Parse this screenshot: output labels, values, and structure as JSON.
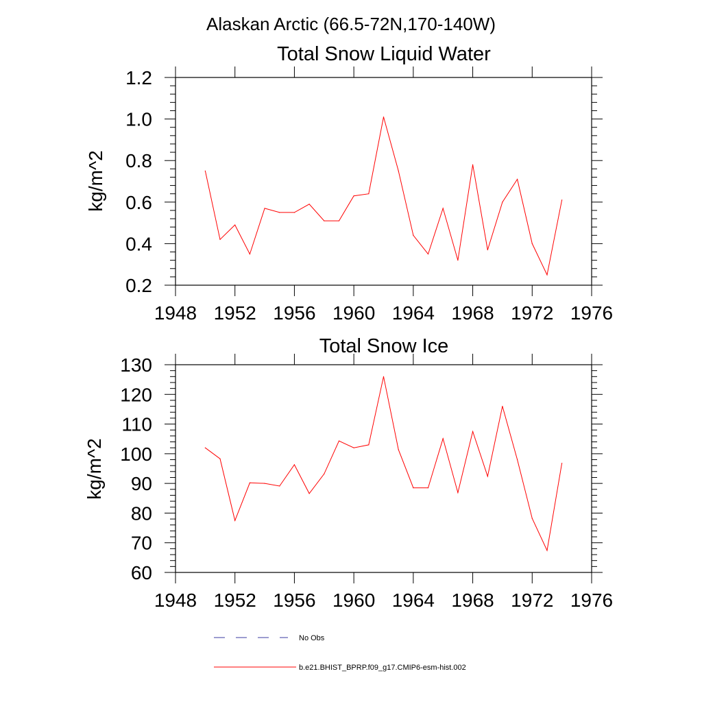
{
  "figure_title": "Alaskan Arctic (66.5-72N,170-140W)",
  "colors": {
    "model": "#ff0000",
    "obs": "#3a3aa0",
    "axes": "#000000"
  },
  "legend": {
    "placement": "bottom-center",
    "entries": [
      {
        "label": "No Obs",
        "style": "dashed",
        "color": "#3a3aa0"
      },
      {
        "label": "b.e21.BHIST_BPRP.f09_g17.CMIP6-esm-hist.002",
        "style": "solid",
        "color": "#ff0000"
      }
    ]
  },
  "chart_data": [
    {
      "type": "line",
      "title": "Total Snow Liquid Water",
      "xlabel": "",
      "ylabel": "kg/m^2",
      "xlim": [
        1948,
        1976
      ],
      "ylim": [
        0.2,
        1.2
      ],
      "x_ticks": [
        "1948",
        "1952",
        "1956",
        "1960",
        "1964",
        "1968",
        "1972",
        "1976"
      ],
      "y_ticks": [
        "0.2",
        "0.4",
        "0.6",
        "0.8",
        "1.0",
        "1.2"
      ],
      "grid": false,
      "series": [
        {
          "name": "b.e21.BHIST_BPRP.f09_g17.CMIP6-esm-hist.002",
          "x": [
            1950,
            1951,
            1952,
            1953,
            1954,
            1955,
            1956,
            1957,
            1958,
            1959,
            1960,
            1961,
            1962,
            1963,
            1964,
            1965,
            1966,
            1967,
            1968,
            1969,
            1970,
            1971,
            1972,
            1973,
            1974
          ],
          "values": [
            0.75,
            0.42,
            0.49,
            0.35,
            0.57,
            0.55,
            0.55,
            0.59,
            0.51,
            0.51,
            0.63,
            0.64,
            1.01,
            0.75,
            0.44,
            0.35,
            0.57,
            0.32,
            0.78,
            0.37,
            0.6,
            0.71,
            0.4,
            0.25,
            0.61
          ]
        }
      ]
    },
    {
      "type": "line",
      "title": "Total Snow Ice",
      "xlabel": "",
      "ylabel": "kg/m^2",
      "xlim": [
        1948,
        1976
      ],
      "ylim": [
        60,
        130
      ],
      "x_ticks": [
        "1948",
        "1952",
        "1956",
        "1960",
        "1964",
        "1968",
        "1972",
        "1976"
      ],
      "y_ticks": [
        "60",
        "70",
        "80",
        "90",
        "100",
        "110",
        "120",
        "130"
      ],
      "grid": false,
      "series": [
        {
          "name": "b.e21.BHIST_BPRP.f09_g17.CMIP6-esm-hist.002",
          "x": [
            1950,
            1951,
            1952,
            1953,
            1954,
            1955,
            1956,
            1957,
            1958,
            1959,
            1960,
            1961,
            1962,
            1963,
            1964,
            1965,
            1966,
            1967,
            1968,
            1969,
            1970,
            1971,
            1972,
            1973,
            1974
          ],
          "values": [
            102.0,
            98.3,
            77.5,
            90.2,
            90.0,
            89.1,
            96.3,
            86.6,
            93.2,
            104.3,
            102.0,
            103.0,
            126.0,
            101.4,
            88.5,
            88.5,
            105.1,
            86.9,
            107.5,
            92.4,
            116.0,
            98.0,
            78.2,
            67.4,
            96.8
          ]
        }
      ]
    }
  ]
}
